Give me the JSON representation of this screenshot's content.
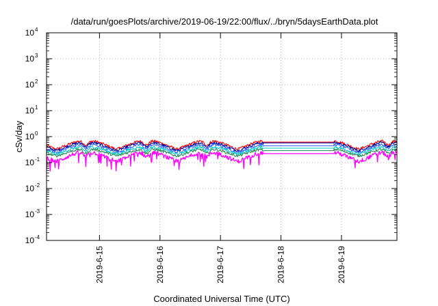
{
  "chart_data": {
    "type": "line",
    "title": "/data/run/goesPlots/archive/2019-06-19/22:00/flux/../bryn/5daysEarthData.plot",
    "xlabel": "Coordinated Universal Time (UTC)",
    "ylabel": "cSv/day",
    "yscale": "log",
    "ylim": [
      0.0001,
      10000
    ],
    "y_ticks": [
      {
        "value": 0.0001,
        "base": "10",
        "exp": "-4"
      },
      {
        "value": 0.001,
        "base": "10",
        "exp": "-3"
      },
      {
        "value": 0.01,
        "base": "10",
        "exp": "-2"
      },
      {
        "value": 0.1,
        "base": "10",
        "exp": "-1"
      },
      {
        "value": 1,
        "base": "10",
        "exp": "0"
      },
      {
        "value": 10,
        "base": "10",
        "exp": "1"
      },
      {
        "value": 100,
        "base": "10",
        "exp": "2"
      },
      {
        "value": 1000,
        "base": "10",
        "exp": "3"
      },
      {
        "value": 10000,
        "base": "10",
        "exp": "4"
      }
    ],
    "xlim": [
      "2019-06-14T03:00",
      "2019-06-19T22:00"
    ],
    "x_ticks": [
      "2019-6-15",
      "2019-6-16",
      "2019-6-17",
      "2019-6-18",
      "2019-6-19"
    ],
    "x_tick_dates": [
      "2019-06-15",
      "2019-06-16",
      "2019-06-17",
      "2019-06-18",
      "2019-06-19"
    ],
    "grid": true,
    "data_gap": [
      "2019-06-17T17:00",
      "2019-06-18T21:00"
    ],
    "series": [
      {
        "color": "#ff0000",
        "level_peak": 0.72,
        "level_trough": 0.33
      },
      {
        "color": "#000099",
        "level_peak": 0.62,
        "level_trough": 0.29
      },
      {
        "color": "#3366ff",
        "level_peak": 0.52,
        "level_trough": 0.25
      },
      {
        "color": "#00cccc",
        "level_peak": 0.42,
        "level_trough": 0.21
      },
      {
        "color": "#2e8b57",
        "level_peak": 0.34,
        "level_trough": 0.18
      },
      {
        "color": "#ff00ff",
        "level_peak": 0.26,
        "level_trough": 0.11
      }
    ]
  }
}
